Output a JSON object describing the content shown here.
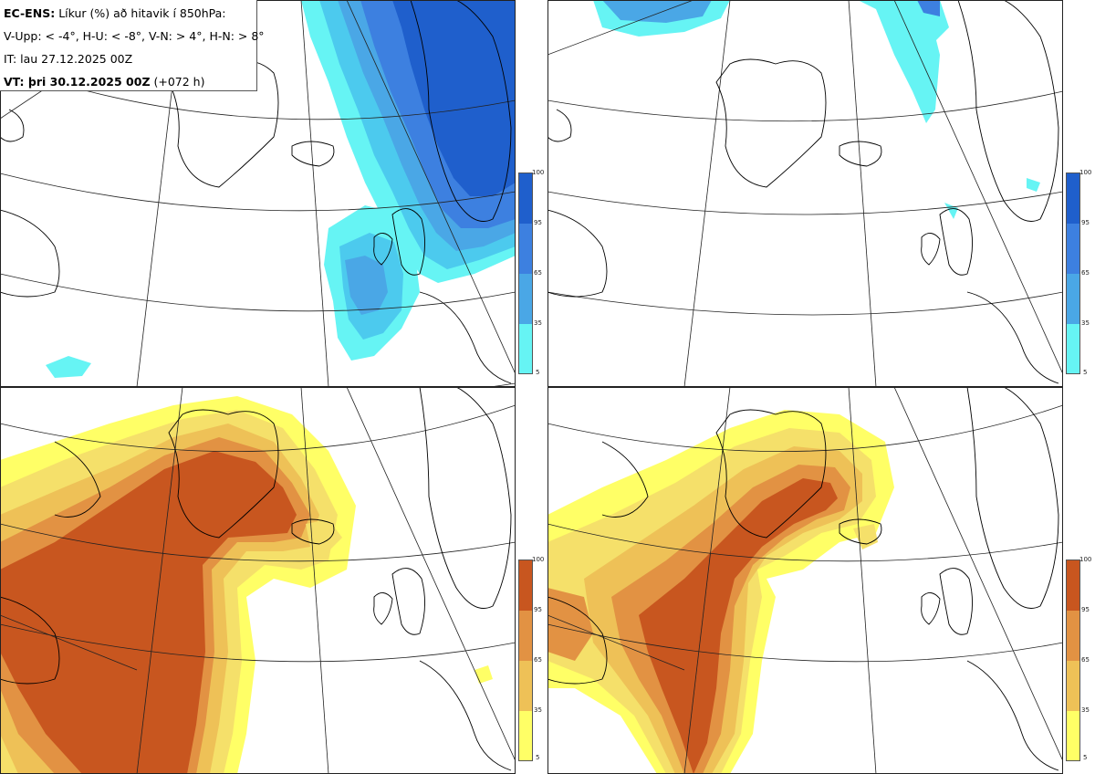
{
  "info": {
    "model_label": "EC-ENS:",
    "title_text": "Líkur (%) að hitavik í 850hPa:",
    "thresholds": "V-Upp: < -4°, H-U: < -8°, V-N: > 4°, H-N: > 8°",
    "init_time": "IT: lau 27.12.2025 00Z",
    "valid_label": "VT: þri 30.12.2025 00Z",
    "lead_time": "(+072 h)"
  },
  "colorbar_ticks": [
    "100",
    "95",
    "65",
    "35",
    "5"
  ],
  "colors": {
    "cold": [
      "#66f4f4",
      "#4ccaee",
      "#4aa7e6",
      "#3d80e0",
      "#1f5fcc"
    ],
    "warm": [
      "#ffff66",
      "#f5e06a",
      "#eec157",
      "#e29243",
      "#c8561f"
    ],
    "coastline": "#000000",
    "grid": "#222222"
  },
  "panels": [
    {
      "id": "top-left",
      "kind": "cold",
      "region": "strong cold anomaly probability"
    },
    {
      "id": "top-right",
      "kind": "cold",
      "region": "extreme cold anomaly probability"
    },
    {
      "id": "bottom-left",
      "kind": "warm",
      "region": "strong warm anomaly probability"
    },
    {
      "id": "bottom-right",
      "kind": "warm",
      "region": "extreme warm anomaly probability"
    }
  ]
}
